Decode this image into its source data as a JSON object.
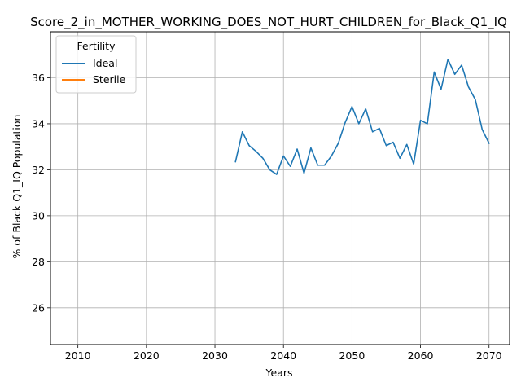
{
  "chart_data": {
    "type": "line",
    "title": "Score_2_in_MOTHER_WORKING_DOES_NOT_HURT_CHILDREN_for_Black_Q1_IQ",
    "xlabel": "Years",
    "ylabel": "% of Black Q1_IQ Population",
    "xlim": [
      2006,
      2073
    ],
    "ylim": [
      24.4,
      38.0
    ],
    "xticks": [
      2010,
      2020,
      2030,
      2040,
      2050,
      2060,
      2070
    ],
    "yticks": [
      26,
      28,
      30,
      32,
      34,
      36
    ],
    "grid": true,
    "legend": {
      "title": "Fertility",
      "placement": "top-left",
      "entries": [
        "Ideal",
        "Sterile"
      ]
    },
    "series": [
      {
        "name": "Ideal",
        "color": "#1f77b4",
        "x": [
          2033,
          2034,
          2035,
          2036,
          2037,
          2038,
          2039,
          2040,
          2041,
          2042,
          2043,
          2044,
          2045,
          2046,
          2047,
          2048,
          2049,
          2050,
          2051,
          2052,
          2053,
          2054,
          2055,
          2056,
          2057,
          2058,
          2059,
          2060,
          2061,
          2062,
          2063,
          2064,
          2065,
          2066,
          2067,
          2068,
          2069,
          2070
        ],
        "y": [
          32.35,
          33.65,
          33.05,
          32.8,
          32.5,
          32.0,
          31.8,
          32.6,
          32.15,
          32.9,
          31.85,
          32.95,
          32.2,
          32.2,
          32.6,
          33.15,
          34.05,
          34.75,
          34.0,
          34.65,
          33.65,
          33.8,
          33.05,
          33.2,
          32.5,
          33.1,
          32.25,
          34.15,
          34.0,
          36.25,
          35.5,
          36.8,
          36.15,
          36.55,
          35.6,
          35.05,
          33.75,
          33.15
        ]
      },
      {
        "name": "Sterile",
        "color": "#ff7f0e",
        "x": [],
        "y": []
      }
    ]
  }
}
